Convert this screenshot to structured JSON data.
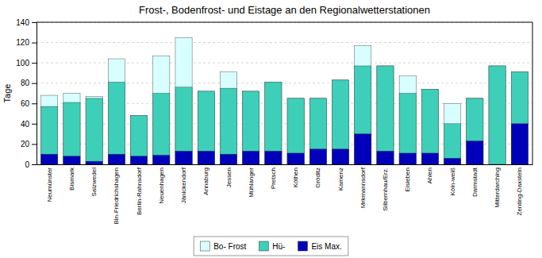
{
  "chart_data": {
    "type": "bar",
    "title": "Frost-, Bodenfrost- und Eistage an den Regionalwetterstationen",
    "ylabel": "Tage",
    "ylim": [
      0,
      140
    ],
    "yticks": [
      0,
      20,
      40,
      60,
      80,
      100,
      120,
      140
    ],
    "categories": [
      "Neumünster",
      "Bismark",
      "Salzwedel",
      "Bln-Friedrichshagen",
      "Berlin-Rahnsdorf",
      "Neuenhagen",
      "Jänickendorf",
      "Annaburg",
      "Jessen",
      "Mühlanger",
      "Pretsch",
      "Köthen",
      "Gröditz",
      "Kamenz",
      "Mrkmannsdorf",
      "Silbernhau/Erz.",
      "Eisleben",
      "Ahlen",
      "Köln-weiß",
      "Darmstadt",
      "Mitterdarching",
      "Zenting-Daxstein"
    ],
    "series": [
      {
        "name": "Bo- Frost",
        "color": "#d8ffff",
        "values": [
          68,
          70,
          67,
          104,
          48,
          107,
          125,
          72,
          91,
          72,
          81,
          65,
          65,
          83,
          117,
          97,
          87,
          74,
          60,
          65,
          97,
          91
        ]
      },
      {
        "name": "Hü-",
        "color": "#3dcfb8",
        "values": [
          57,
          61,
          65,
          81,
          48,
          70,
          76,
          72,
          75,
          72,
          81,
          65,
          65,
          83,
          97,
          97,
          70,
          74,
          40,
          65,
          97,
          91
        ]
      },
      {
        "name": "Eis Max.",
        "color": "#0000bb",
        "values": [
          10,
          8,
          3,
          10,
          8,
          9,
          13,
          13,
          10,
          13,
          13,
          11,
          15,
          15,
          30,
          13,
          11,
          11,
          6,
          23,
          0,
          40
        ]
      }
    ],
    "stacked": false,
    "grid": true,
    "legend": "bottom"
  }
}
